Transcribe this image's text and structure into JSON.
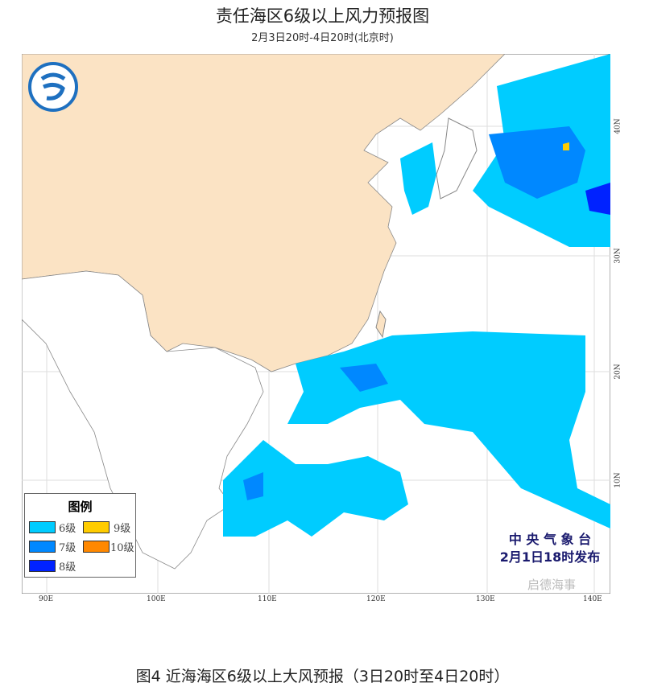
{
  "title": "责任海区6级以上风力预报图",
  "subtitle": "2月3日20时-4日20时(北京时)",
  "legend": {
    "title": "图例",
    "items": [
      {
        "label": "6级",
        "color": "#00ccff"
      },
      {
        "label": "7级",
        "color": "#0088ff"
      },
      {
        "label": "8级",
        "color": "#0022ff"
      },
      {
        "label": "9级",
        "color": "#ffcc00"
      },
      {
        "label": "10级",
        "color": "#ff8800"
      }
    ]
  },
  "issuer": {
    "line1": "中 央 气 象 台",
    "line2": "2月1日18时发布"
  },
  "watermark": "启德海事",
  "axes": {
    "lon": [
      "90E",
      "100E",
      "110E",
      "120E",
      "130E",
      "140E"
    ],
    "lat": [
      "40N",
      "30N",
      "20N",
      "10N"
    ]
  },
  "caption": "图4 近海海区6级以上大风预报（3日20时至4日20时）"
}
